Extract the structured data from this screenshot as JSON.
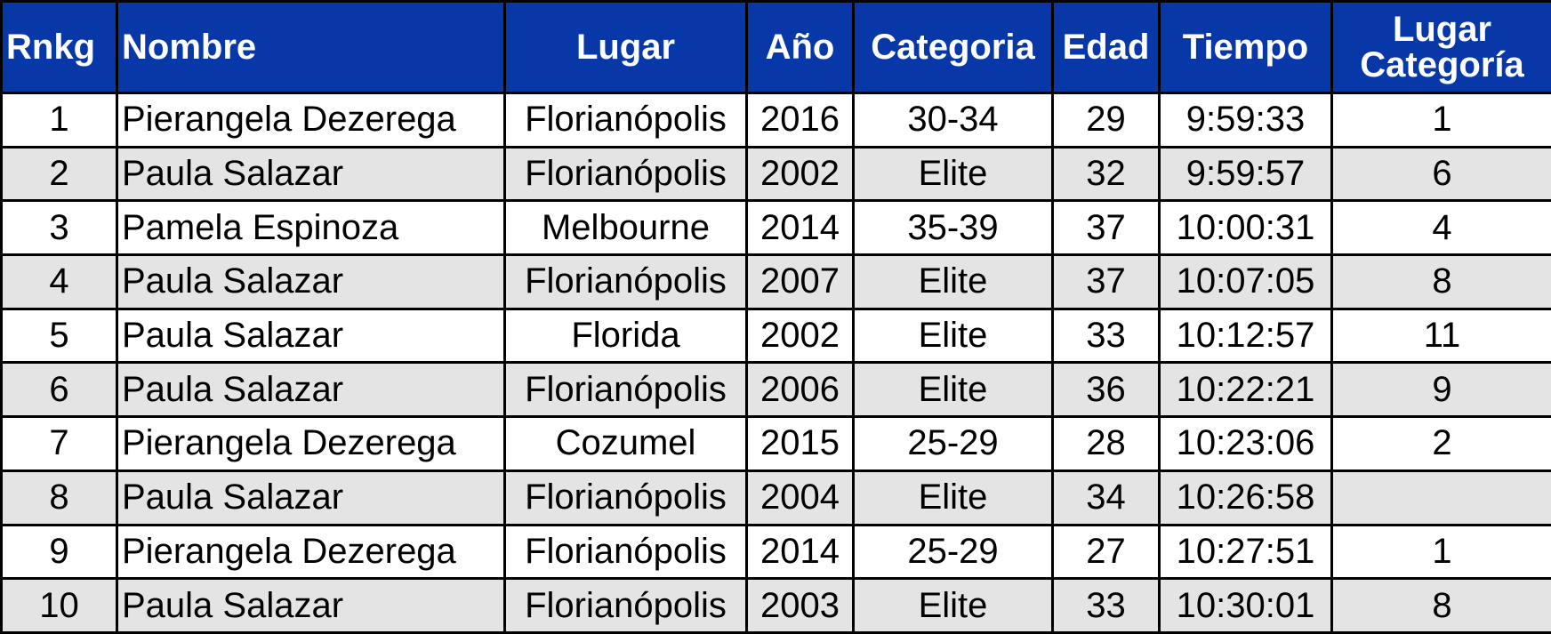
{
  "table": {
    "headers": {
      "rank": "Rnkg",
      "name": "Nombre",
      "place": "Lugar",
      "year": "Año",
      "category": "Categoria",
      "age": "Edad",
      "time": "Tiempo",
      "category_place_line1": "Lugar",
      "category_place_line2": "Categoría"
    },
    "rows": [
      {
        "rank": "1",
        "name": "Pierangela Dezerega",
        "place": "Florianópolis",
        "year": "2016",
        "category": "30-34",
        "age": "29",
        "time": "9:59:33",
        "category_place": "1"
      },
      {
        "rank": "2",
        "name": "Paula Salazar",
        "place": "Florianópolis",
        "year": "2002",
        "category": "Elite",
        "age": "32",
        "time": "9:59:57",
        "category_place": "6"
      },
      {
        "rank": "3",
        "name": "Pamela Espinoza",
        "place": "Melbourne",
        "year": "2014",
        "category": "35-39",
        "age": "37",
        "time": "10:00:31",
        "category_place": "4"
      },
      {
        "rank": "4",
        "name": "Paula Salazar",
        "place": "Florianópolis",
        "year": "2007",
        "category": "Elite",
        "age": "37",
        "time": "10:07:05",
        "category_place": "8"
      },
      {
        "rank": "5",
        "name": "Paula Salazar",
        "place": "Florida",
        "year": "2002",
        "category": "Elite",
        "age": "33",
        "time": "10:12:57",
        "category_place": "11"
      },
      {
        "rank": "6",
        "name": "Paula Salazar",
        "place": "Florianópolis",
        "year": "2006",
        "category": "Elite",
        "age": "36",
        "time": "10:22:21",
        "category_place": "9"
      },
      {
        "rank": "7",
        "name": "Pierangela Dezerega",
        "place": "Cozumel",
        "year": "2015",
        "category": "25-29",
        "age": "28",
        "time": "10:23:06",
        "category_place": "2"
      },
      {
        "rank": "8",
        "name": "Paula Salazar",
        "place": "Florianópolis",
        "year": "2004",
        "category": "Elite",
        "age": "34",
        "time": "10:26:58",
        "category_place": ""
      },
      {
        "rank": "9",
        "name": "Pierangela Dezerega",
        "place": "Florianópolis",
        "year": "2014",
        "category": "25-29",
        "age": "27",
        "time": "10:27:51",
        "category_place": "1"
      },
      {
        "rank": "10",
        "name": "Paula Salazar",
        "place": "Florianópolis",
        "year": "2003",
        "category": "Elite",
        "age": "33",
        "time": "10:30:01",
        "category_place": "8"
      }
    ]
  },
  "colors": {
    "header_background": "#0838a8",
    "header_text": "#ffffff",
    "stripe_background": "#e4e4e4",
    "border": "#000000"
  }
}
